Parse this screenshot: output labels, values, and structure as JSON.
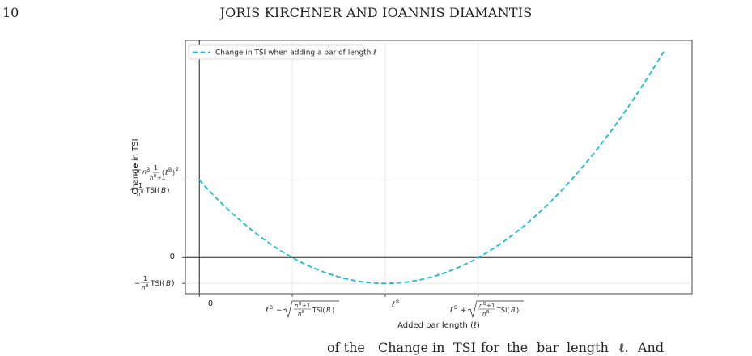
{
  "page": {
    "number": "10",
    "running_head": "JORIS KIRCHNER AND IOANNIS DIAMANTIS",
    "caption_fragments": [
      "of the",
      "Change",
      "in",
      "TSI",
      "for",
      "the",
      "bar",
      "length",
      "ℓ.",
      "And"
    ]
  },
  "chart_data": {
    "type": "line",
    "xlabel": "Added bar length (ℓ)",
    "ylabel": "Change in TSI",
    "grid": true,
    "legend_placement": "top-left",
    "series": [
      {
        "name": "Change in TSI when adding a bar of length ℓ",
        "color": "#17becf",
        "style": "dashed"
      }
    ],
    "x_ticks": [
      {
        "x": 0,
        "label": "0"
      },
      {
        "x": 1,
        "label": "ℓ̄ᴮ − √((nᴮ+1)/nᴮ · TSI(B))"
      },
      {
        "x": 2,
        "label": "ℓ̄ᴮ"
      },
      {
        "x": 3,
        "label": "ℓ̄ᴮ + √((nᴮ+1)/nᴮ · TSI(B))"
      }
    ],
    "y_ticks": [
      {
        "y": -1,
        "label": "−(1/nᴮ) TSI(B)"
      },
      {
        "y": 0,
        "label": "0"
      },
      {
        "y": 3,
        "label": "(1/nᴮ)(1/(nᴮ+1))(ℓ̄ᴮ)² − (1/nᴮ) TSI(B)"
      }
    ],
    "function": "y = (x - 2)^2 - 1",
    "xlim": [
      -0.15,
      5.3
    ],
    "ylim": [
      -1.4,
      8.4
    ],
    "x_range": [
      0,
      5.0
    ]
  }
}
